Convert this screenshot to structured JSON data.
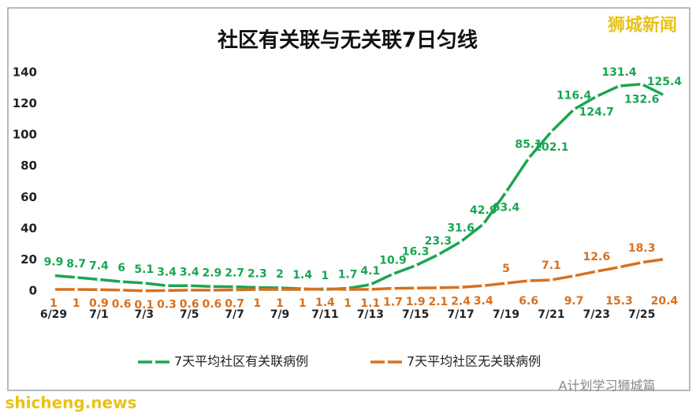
{
  "chart_data": {
    "type": "line",
    "title": "社区有关联与无关联7日匀线",
    "categories": [
      "6/29",
      null,
      "7/1",
      null,
      "7/3",
      null,
      "7/5",
      null,
      "7/7",
      null,
      "7/9",
      null,
      "7/11",
      null,
      "7/13",
      null,
      "7/15",
      null,
      "7/17",
      null,
      "7/19",
      null,
      "7/21",
      null,
      "7/23",
      null,
      "7/25",
      null
    ],
    "series": [
      {
        "name": "7天平均社区有关联病例",
        "color": "#1aa552",
        "values": [
          9.9,
          8.7,
          7.4,
          6,
          5.1,
          3.4,
          3.4,
          2.9,
          2.7,
          2.3,
          2,
          1.4,
          1,
          1.7,
          4.1,
          10.9,
          16.3,
          23.3,
          31.6,
          42.9,
          63.4,
          85.1,
          102.1,
          116.4,
          124.7,
          131.4,
          132.6,
          125.4
        ]
      },
      {
        "name": "7天平均社区无关联病例",
        "color": "#d8701e",
        "values": [
          1,
          1,
          0.9,
          0.6,
          0.1,
          0.3,
          0.6,
          0.6,
          0.7,
          1,
          1,
          1,
          1.4,
          1,
          1.1,
          1.7,
          1.9,
          2.1,
          2.4,
          3.4,
          5,
          6.6,
          7.1,
          9.7,
          12.6,
          15.3,
          18.3,
          20.4
        ]
      }
    ],
    "ylim": [
      0,
      140
    ],
    "yticks": [
      0,
      20,
      40,
      60,
      80,
      100,
      120,
      140
    ],
    "grid": false,
    "legend": "bottom"
  },
  "watermarks": {
    "top_right": "狮城新闻",
    "bottom_left": "shicheng.news",
    "bottom_right": "A计划学习狮城篇"
  }
}
